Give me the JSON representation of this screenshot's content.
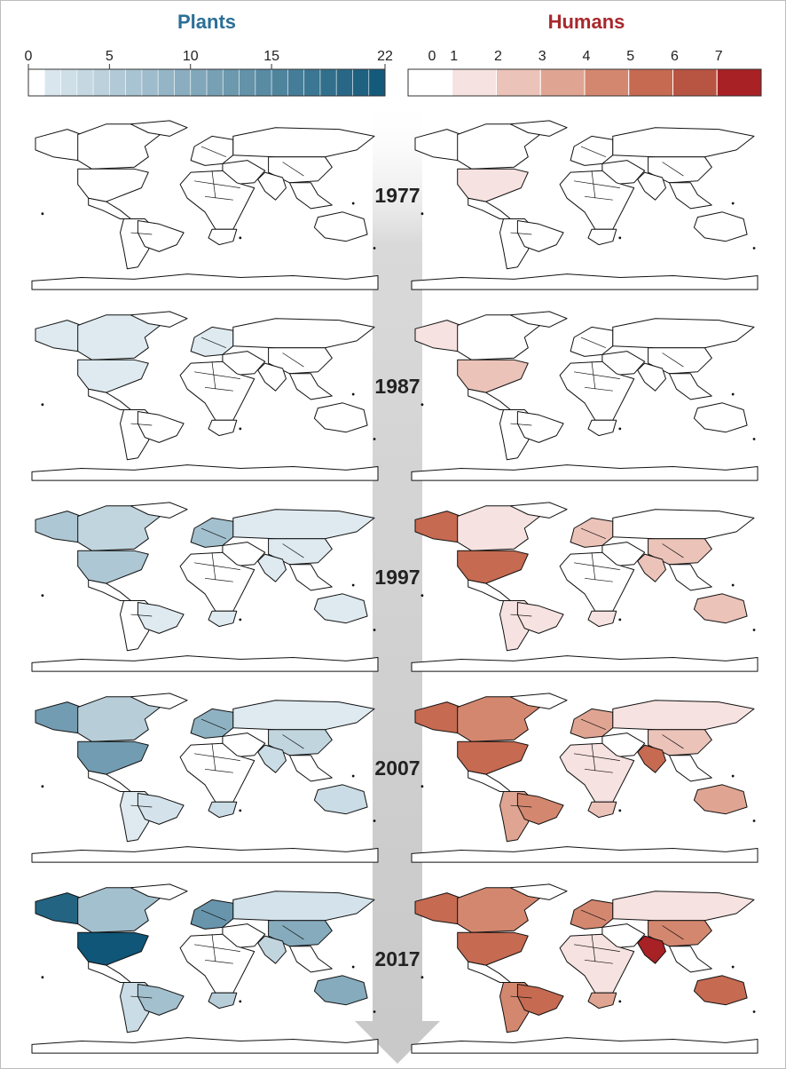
{
  "chart_data": {
    "type": "map",
    "years": [
      "1977",
      "1987",
      "1997",
      "2007",
      "2017"
    ],
    "panels": [
      {
        "name": "Plants",
        "color": "#2a6f97",
        "scale": {
          "ticks": [
            "0",
            "5",
            "10",
            "15",
            "22"
          ],
          "min": 0,
          "max": 22,
          "low_color": "#ffffff",
          "high_color": "#0f5678"
        },
        "regions_by_year": {
          "1977": {
            "north_america": 0,
            "usa": 0,
            "alaska": 0,
            "europe": 0,
            "russia": 0,
            "china": 0,
            "india": 0,
            "brazil": 0,
            "south_america": 0,
            "africa": 0,
            "south_africa": 0,
            "australia": 0
          },
          "1987": {
            "north_america": 1,
            "usa": 1,
            "alaska": 1,
            "europe": 1,
            "russia": 0,
            "china": 0,
            "india": 0,
            "brazil": 0,
            "south_america": 0,
            "africa": 0,
            "south_africa": 0,
            "australia": 0
          },
          "1997": {
            "north_america": 4,
            "usa": 6,
            "alaska": 6,
            "europe": 7,
            "russia": 1,
            "china": 1,
            "india": 1,
            "brazil": 1,
            "south_america": 0,
            "africa": 0,
            "south_africa": 1,
            "australia": 1
          },
          "2007": {
            "north_america": 5,
            "usa": 12,
            "alaska": 12,
            "europe": 9,
            "russia": 1,
            "china": 4,
            "india": 3,
            "brazil": 2,
            "south_america": 1,
            "africa": 0,
            "south_africa": 3,
            "australia": 3
          },
          "2017": {
            "north_america": 7,
            "usa": 22,
            "alaska": 20,
            "europe": 13,
            "russia": 2,
            "china": 10,
            "india": 4,
            "brazil": 7,
            "south_america": 3,
            "africa": 0,
            "south_africa": 5,
            "australia": 10
          }
        }
      },
      {
        "name": "Humans",
        "color": "#a8282c",
        "scale": {
          "ticks": [
            "0",
            "1",
            "2",
            "3",
            "4",
            "5",
            "6",
            "7"
          ],
          "min": 0,
          "max": 7,
          "steps": [
            "#ffffff",
            "#f6e2e0",
            "#ebc3b9",
            "#e0a592",
            "#d4876f",
            "#c66a51",
            "#b85442",
            "#a82125"
          ]
        },
        "regions_by_year": {
          "1977": {
            "north_america": 0,
            "usa": 1,
            "alaska": 0,
            "europe": 0,
            "russia": 0,
            "china": 0,
            "india": 0,
            "brazil": 0,
            "south_america": 0,
            "africa": 0,
            "south_africa": 0,
            "australia": 0
          },
          "1987": {
            "north_america": 0,
            "usa": 2,
            "alaska": 1,
            "europe": 0,
            "russia": 0,
            "china": 0,
            "india": 0,
            "brazil": 0,
            "south_america": 0,
            "africa": 0,
            "south_africa": 0,
            "australia": 0
          },
          "1997": {
            "north_america": 1,
            "usa": 5,
            "alaska": 5,
            "europe": 2,
            "russia": 0,
            "china": 2,
            "india": 2,
            "brazil": 1,
            "south_america": 1,
            "africa": 0,
            "south_africa": 1,
            "australia": 2
          },
          "2007": {
            "north_america": 4,
            "usa": 5,
            "alaska": 5,
            "europe": 3,
            "russia": 1,
            "china": 2,
            "india": 5,
            "brazil": 4,
            "south_america": 3,
            "africa": 1,
            "south_africa": 2,
            "australia": 3
          },
          "2017": {
            "north_america": 4,
            "usa": 5,
            "alaska": 5,
            "europe": 4,
            "russia": 1,
            "china": 4,
            "india": 7,
            "brazil": 5,
            "south_america": 4,
            "africa": 1,
            "south_africa": 3,
            "australia": 5
          }
        }
      }
    ]
  }
}
